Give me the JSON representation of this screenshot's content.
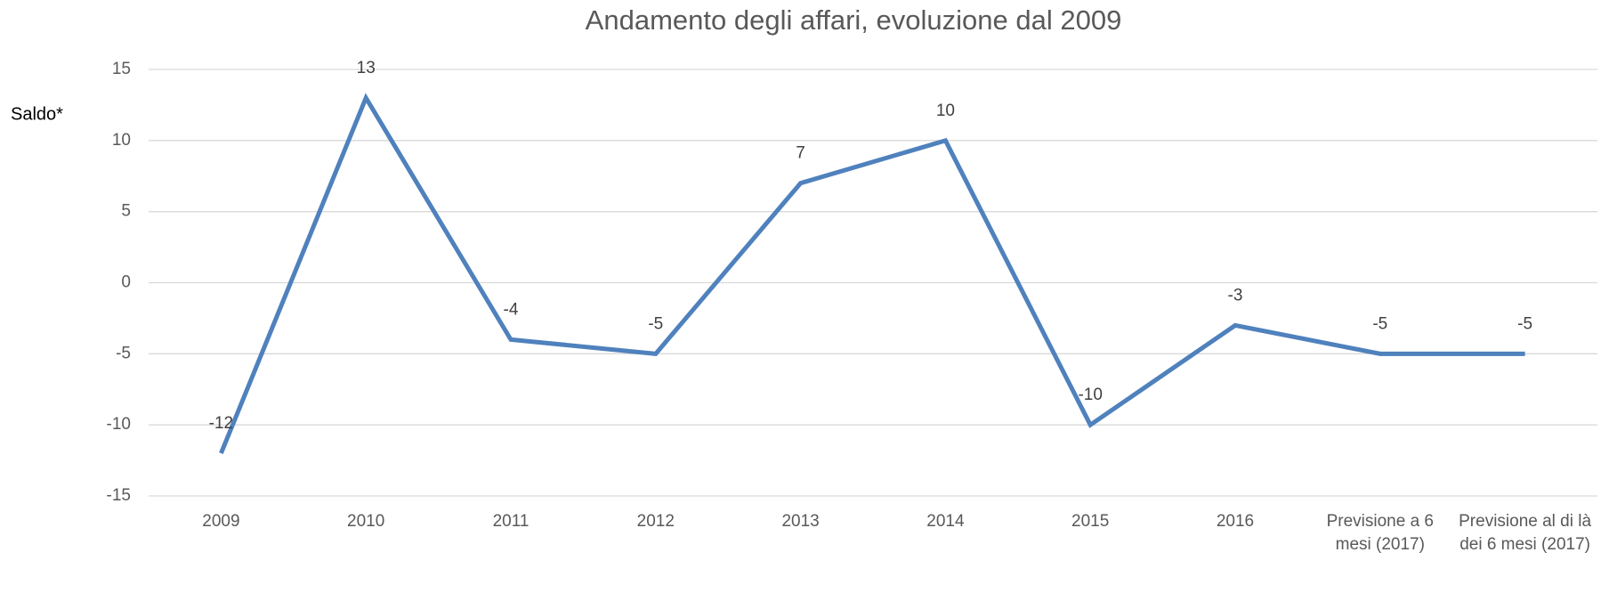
{
  "chart_data": {
    "type": "line",
    "title": "Andamento degli affari, evoluzione dal 2009",
    "y_label": "Saldo*",
    "categories": [
      "2009",
      "2010",
      "2011",
      "2012",
      "2013",
      "2014",
      "2015",
      "2016",
      "Previsione a 6 mesi (2017)",
      "Previsione al di là dei 6 mesi (2017)"
    ],
    "series": [
      {
        "name": "Saldo",
        "color": "#4f81bd",
        "values": [
          -12,
          13,
          -4,
          -5,
          7,
          10,
          -10,
          -3,
          -5,
          -5
        ]
      }
    ],
    "ylim": [
      -15,
      15
    ],
    "yticks": [
      -15,
      -10,
      -5,
      0,
      5,
      10,
      15
    ],
    "grid": true
  }
}
